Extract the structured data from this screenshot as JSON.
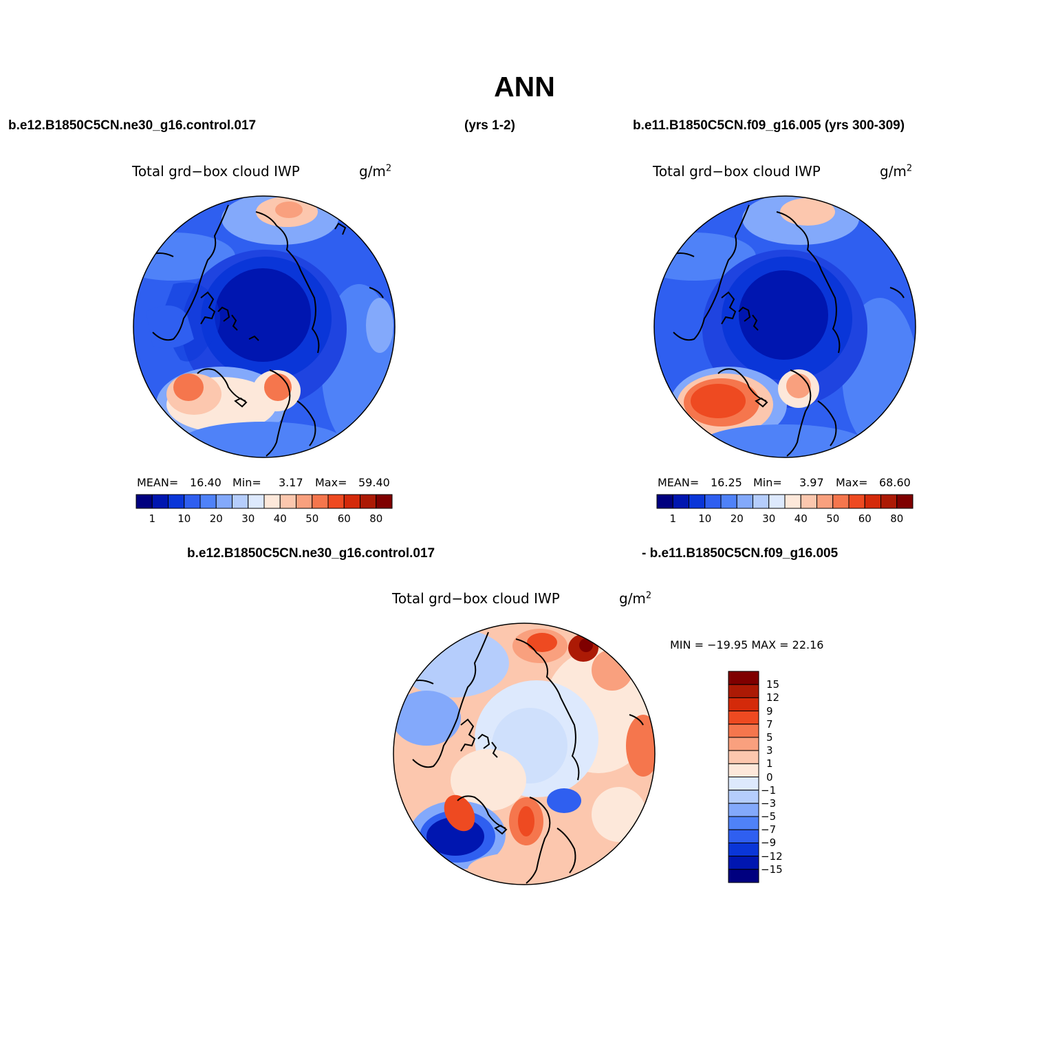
{
  "page": {
    "title": "ANN",
    "case1_label": "b.e12.B1850C5CN.ne30_g16.control.017",
    "case1_years": "(yrs 1-2)",
    "case2_label": "b.e11.B1850C5CN.f09_g16.005 (yrs 300-309)",
    "diff_label_left": "b.e12.B1850C5CN.ne30_g16.control.017",
    "diff_label_right": "- b.e11.B1850C5CN.f09_g16.005"
  },
  "panels": [
    {
      "name": "case1",
      "variable": "Total grd−box cloud IWP",
      "units_base": "g/m",
      "units_exp": "2",
      "stats": {
        "mean_label": "MEAN=",
        "mean": "16.40",
        "min_label": "Min=",
        "min": "3.17",
        "max_label": "Max=",
        "max": "59.40"
      }
    },
    {
      "name": "case2",
      "variable": "Total grd−box cloud IWP",
      "units_base": "g/m",
      "units_exp": "2",
      "stats": {
        "mean_label": "MEAN=",
        "mean": "16.25",
        "min_label": "Min=",
        "min": "3.97",
        "max_label": "Max=",
        "max": "68.60"
      }
    },
    {
      "name": "difference",
      "variable": "Total grd−box cloud IWP",
      "units_base": "g/m",
      "units_exp": "2",
      "stats_text": "MIN = −19.95 MAX =  22.16"
    }
  ],
  "colorbar_abs": {
    "colors": [
      "#00007f",
      "#0016b0",
      "#0a36d8",
      "#2f5ff0",
      "#4f82f8",
      "#83a9fb",
      "#b5cdfc",
      "#dde9fd",
      "#fde8da",
      "#fcc7ae",
      "#f9a07e",
      "#f5764d",
      "#ee4a21",
      "#d42a0a",
      "#ac1a05",
      "#7f0000"
    ],
    "ticks": [
      "1",
      "10",
      "20",
      "30",
      "40",
      "50",
      "60",
      "80"
    ]
  },
  "colorbar_diff": {
    "colors": [
      "#7f0000",
      "#ac1a05",
      "#d42a0a",
      "#ee4a21",
      "#f5764d",
      "#f9a07e",
      "#fcc7ae",
      "#fde8da",
      "#dde9fd",
      "#b5cdfc",
      "#83a9fb",
      "#4f82f8",
      "#2f5ff0",
      "#0a36d8",
      "#0016b0",
      "#00007f"
    ],
    "ticks": [
      "15",
      "12",
      "9",
      "7",
      "5",
      "3",
      "1",
      "0",
      "−1",
      "−3",
      "−5",
      "−7",
      "−9",
      "−12",
      "−15"
    ]
  },
  "map_palette": {
    "deep_blue": "#0a1a9a",
    "blue": "#1f44e0",
    "mid_blue": "#3a6af3",
    "light_blue": "#7fa4fa",
    "pale_blue": "#c7dafc",
    "pale_orange": "#fcd8c4",
    "orange": "#f7926a",
    "red_orange": "#ee4a21",
    "dark_red": "#a31705"
  }
}
